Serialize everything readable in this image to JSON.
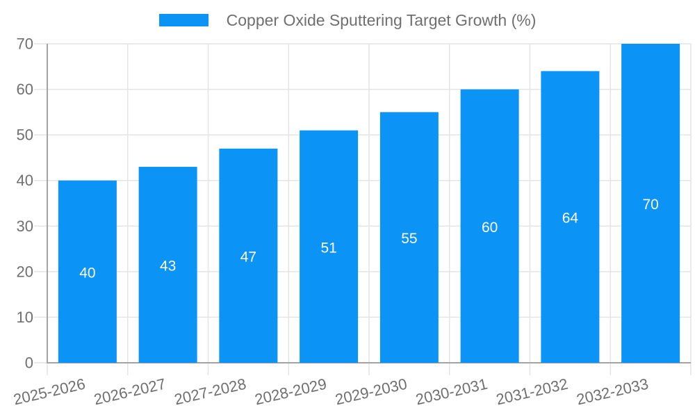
{
  "legend": {
    "label": "Copper Oxide Sputtering Target Growth (%)",
    "position": "top"
  },
  "chart_data": {
    "type": "bar",
    "title": "Copper Oxide Sputtering Target Growth (%)",
    "series_name": "Copper Oxide Sputtering Target Growth (%)",
    "categories": [
      "2025-2026",
      "2026-2027",
      "2027-2028",
      "2028-2029",
      "2029-2030",
      "2030-2031",
      "2031-2032",
      "2032-2033"
    ],
    "values": [
      40,
      43,
      47,
      51,
      55,
      60,
      64,
      70
    ],
    "xlabel": "",
    "ylabel": "",
    "ylim": [
      0,
      70
    ],
    "yticks": [
      0,
      10,
      20,
      30,
      40,
      50,
      60,
      70
    ],
    "grid": true,
    "legend_position": "top",
    "value_labels_inside_bars": true,
    "colors": {
      "bar": "#0b93f5",
      "bar_value_label": "#ffffff",
      "axis_text": "#6f6f6f",
      "gridline": "#e4e4e4",
      "axis_line": "#a3a3a3",
      "background": "#ffffff"
    }
  }
}
